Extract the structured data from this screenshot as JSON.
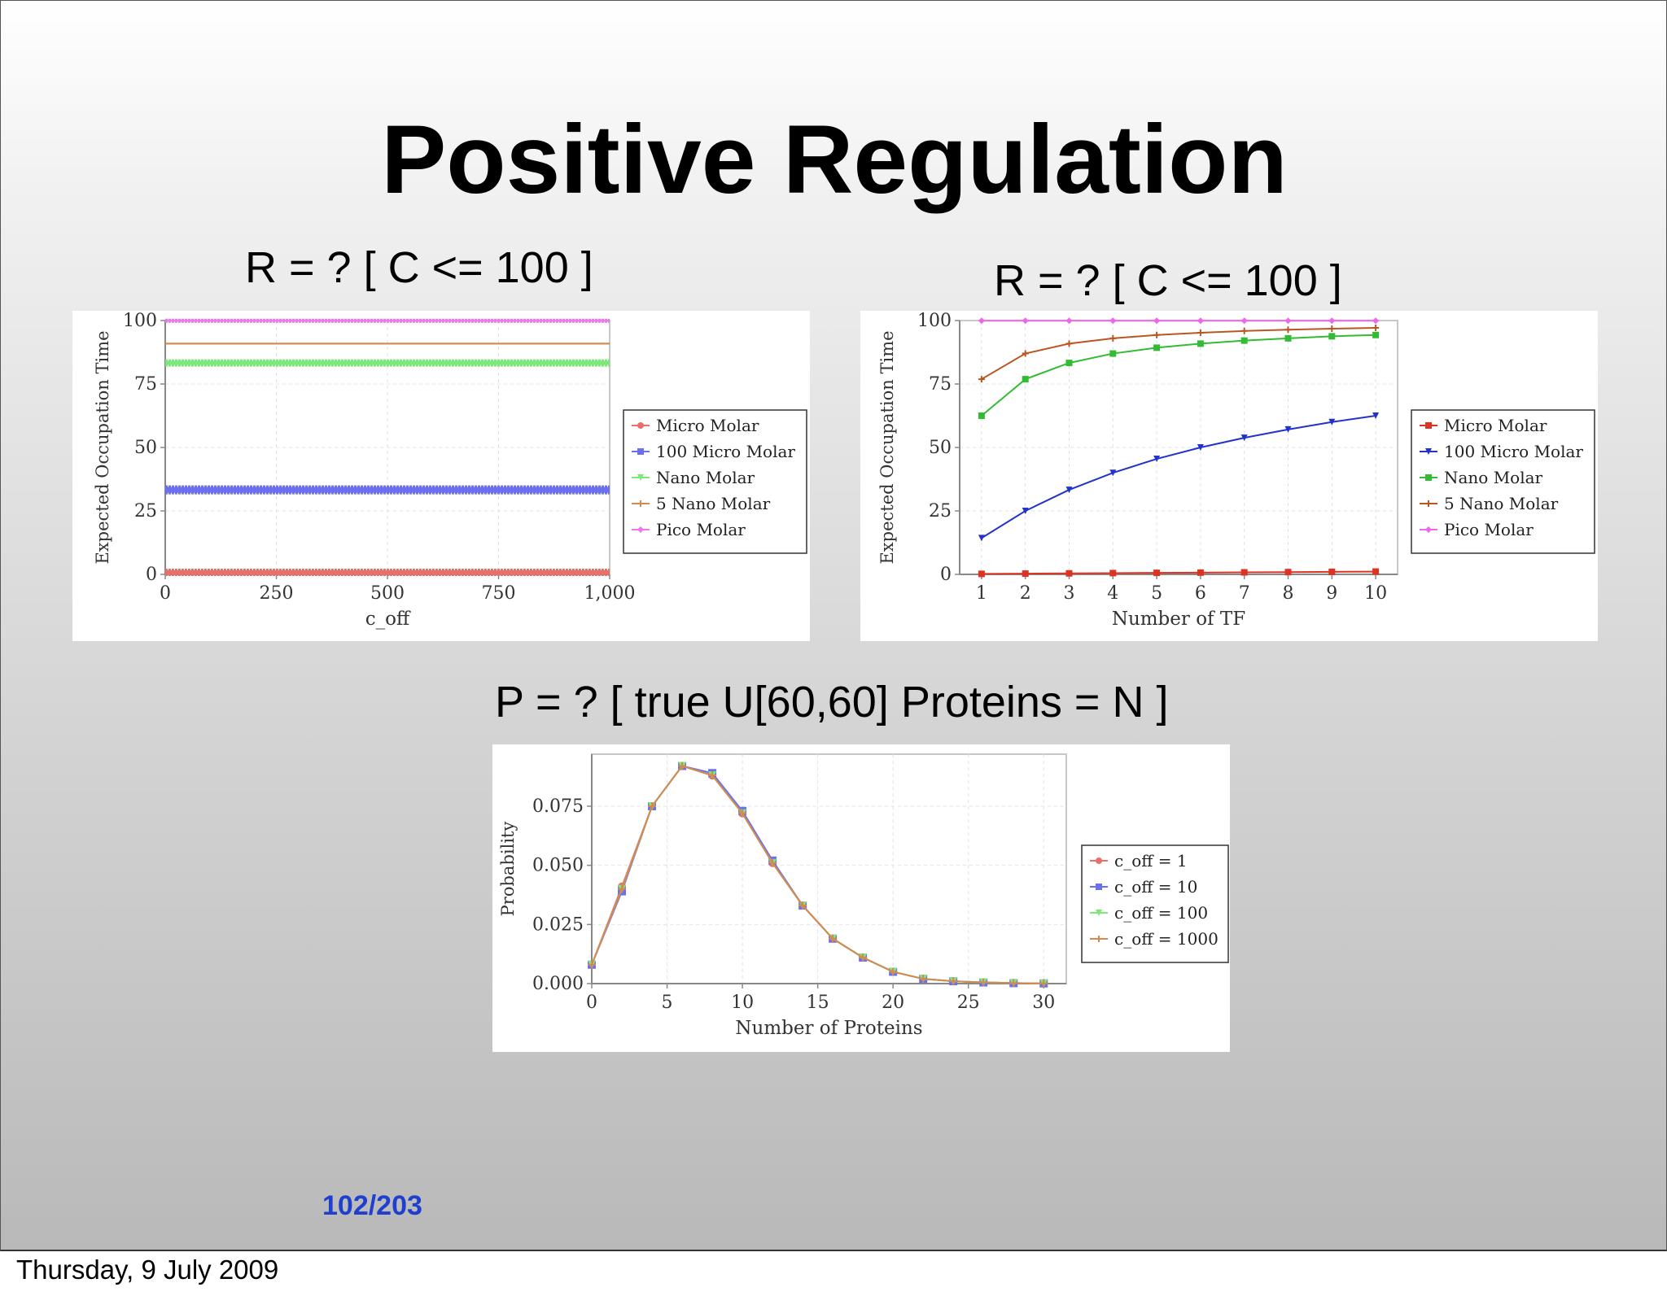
{
  "slide": {
    "title": "Positive Regulation",
    "page_number": "102/203",
    "footer_date": "Thursday, 9 July 2009"
  },
  "captions": [
    "R = ? [ C <= 100 ]",
    "R = ? [ C <= 100 ]",
    "P = ? [ true U[60,60] Proteins = N ]"
  ],
  "chart_data": [
    {
      "type": "line",
      "xlabel": "c_off",
      "ylabel": "Expected Occupation Time",
      "xlim": [
        0,
        1000
      ],
      "ylim": [
        0,
        100
      ],
      "xticks": [
        "0",
        "250",
        "500",
        "750",
        "1,000"
      ],
      "yticks": [
        "0",
        "25",
        "50",
        "75",
        "100"
      ],
      "grid": true,
      "legend_position": "right",
      "series": [
        {
          "name": "Micro Molar",
          "color": "#e8706a",
          "marker": "circle",
          "x_range": [
            0,
            1000
          ],
          "y": 0.8
        },
        {
          "name": "100 Micro Molar",
          "color": "#6a70ee",
          "marker": "square",
          "x_range": [
            0,
            1000
          ],
          "y": 33.3
        },
        {
          "name": "Nano Molar",
          "color": "#7ce87a",
          "marker": "triangle-down",
          "x_range": [
            0,
            1000
          ],
          "y": 83.3
        },
        {
          "name": "5 Nano Molar",
          "color": "#d4894e",
          "marker": "plus",
          "x_range": [
            0,
            1000
          ],
          "y": 90.9
        },
        {
          "name": "Pico Molar",
          "color": "#ee77ee",
          "marker": "diamond",
          "x_range": [
            0,
            1000
          ],
          "y": 99.9
        }
      ]
    },
    {
      "type": "line",
      "xlabel": "Number of TF",
      "ylabel": "Expected Occupation Time",
      "x": [
        1,
        2,
        3,
        4,
        5,
        6,
        7,
        8,
        9,
        10
      ],
      "xlim": [
        0.5,
        10.5
      ],
      "ylim": [
        0,
        100
      ],
      "xticks": [
        "1",
        "2",
        "3",
        "4",
        "5",
        "6",
        "7",
        "8",
        "9",
        "10"
      ],
      "yticks": [
        "0",
        "25",
        "50",
        "75",
        "100"
      ],
      "grid": true,
      "legend_position": "right",
      "series": [
        {
          "name": "Micro Molar",
          "color": "#dd3322",
          "marker": "square",
          "values": [
            0.2,
            0.3,
            0.4,
            0.5,
            0.6,
            0.7,
            0.8,
            0.9,
            1.0,
            1.1
          ]
        },
        {
          "name": "100 Micro Molar",
          "color": "#2233cc",
          "marker": "triangle-down",
          "values": [
            14.3,
            25,
            33.3,
            40,
            45.5,
            50,
            53.8,
            57.1,
            60,
            62.5
          ]
        },
        {
          "name": "Nano Molar",
          "color": "#33bb33",
          "marker": "square",
          "values": [
            62.5,
            76.9,
            83.3,
            87,
            89.3,
            90.9,
            92.1,
            93,
            93.8,
            94.3
          ]
        },
        {
          "name": "5 Nano Molar",
          "color": "#bb5522",
          "marker": "plus",
          "values": [
            76.9,
            87,
            90.9,
            93,
            94.3,
            95.2,
            95.9,
            96.4,
            96.8,
            97.1
          ]
        },
        {
          "name": "Pico Molar",
          "color": "#ee66ee",
          "marker": "diamond",
          "values": [
            99.9,
            99.9,
            99.9,
            99.9,
            99.9,
            99.9,
            99.9,
            99.9,
            99.9,
            99.9
          ]
        }
      ]
    },
    {
      "type": "line",
      "xlabel": "Number of Proteins",
      "ylabel": "Probability",
      "x": [
        0,
        2,
        4,
        6,
        8,
        10,
        12,
        14,
        16,
        18,
        20,
        22,
        24,
        26,
        28,
        30
      ],
      "xlim": [
        0,
        31.5
      ],
      "ylim": [
        0,
        0.097
      ],
      "xticks": [
        "0",
        "5",
        "10",
        "15",
        "20",
        "25",
        "30"
      ],
      "yticks": [
        "0.000",
        "0.025",
        "0.050",
        "0.075"
      ],
      "grid": true,
      "legend_position": "right",
      "series": [
        {
          "name": "c_off = 1",
          "color": "#e8706a",
          "marker": "circle",
          "values": [
            0.008,
            0.041,
            0.075,
            0.092,
            0.088,
            0.072,
            0.051,
            0.033,
            0.019,
            0.011,
            0.005,
            0.002,
            0.001,
            0.0005,
            0.0002,
            0.0001
          ]
        },
        {
          "name": "c_off = 10",
          "color": "#6a70ee",
          "marker": "square",
          "values": [
            0.008,
            0.039,
            0.075,
            0.092,
            0.089,
            0.073,
            0.052,
            0.033,
            0.019,
            0.011,
            0.005,
            0.002,
            0.001,
            0.0005,
            0.0002,
            0.0001
          ]
        },
        {
          "name": "c_off = 100",
          "color": "#7ce87a",
          "marker": "triangle-down",
          "values": [
            0.008,
            0.04,
            0.075,
            0.092,
            0.088,
            0.072,
            0.051,
            0.033,
            0.019,
            0.011,
            0.005,
            0.002,
            0.001,
            0.0005,
            0.0002,
            0.0001
          ]
        },
        {
          "name": "c_off = 1000",
          "color": "#d4894e",
          "marker": "plus",
          "values": [
            0.008,
            0.04,
            0.075,
            0.092,
            0.088,
            0.072,
            0.051,
            0.033,
            0.019,
            0.011,
            0.005,
            0.002,
            0.001,
            0.0005,
            0.0002,
            0.0001
          ]
        }
      ]
    }
  ]
}
